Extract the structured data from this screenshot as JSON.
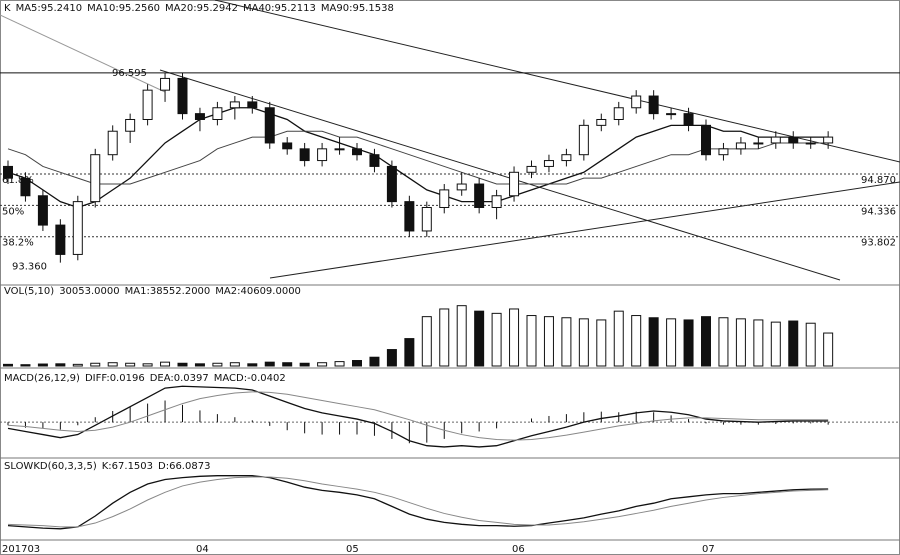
{
  "chart_data": [
    {
      "type": "candlestick",
      "headers": [
        "K",
        "MA5:95.2410",
        "MA10:95.2560",
        "MA20:95.2942",
        "MA40:95.2113",
        "MA90:95.1538"
      ],
      "ylim": [
        93.03,
        97.53
      ],
      "high_label": 96.595,
      "low_label": {
        "value": 93.36,
        "label": "93.360"
      },
      "levels": [
        {
          "pct": "61.8%",
          "price": {
            "value": 94.87,
            "label": "94.870"
          }
        },
        {
          "pct": "50%",
          "price": 94.336
        },
        {
          "pct": "38.2%",
          "price": 93.802
        }
      ],
      "candles": [
        [
          95.0,
          95.1,
          94.7,
          94.8
        ],
        [
          94.8,
          94.9,
          94.4,
          94.5
        ],
        [
          94.5,
          94.6,
          93.9,
          94.0
        ],
        [
          94.0,
          94.1,
          93.36,
          93.5
        ],
        [
          93.5,
          94.5,
          93.4,
          94.4
        ],
        [
          94.4,
          95.3,
          94.3,
          95.2
        ],
        [
          95.2,
          95.7,
          95.1,
          95.6
        ],
        [
          95.6,
          95.9,
          95.4,
          95.8
        ],
        [
          95.8,
          96.4,
          95.7,
          96.3
        ],
        [
          96.3,
          96.595,
          96.1,
          96.5
        ],
        [
          96.5,
          96.6,
          95.8,
          95.9
        ],
        [
          95.9,
          96.0,
          95.6,
          95.8
        ],
        [
          95.8,
          96.1,
          95.7,
          96.0
        ],
        [
          96.0,
          96.2,
          95.8,
          96.1
        ],
        [
          96.1,
          96.2,
          95.9,
          96.0
        ],
        [
          96.0,
          96.1,
          95.3,
          95.4
        ],
        [
          95.4,
          95.5,
          95.2,
          95.3
        ],
        [
          95.3,
          95.4,
          95.0,
          95.1
        ],
        [
          95.1,
          95.4,
          95.0,
          95.3
        ],
        [
          95.3,
          95.5,
          95.2,
          95.3
        ],
        [
          95.3,
          95.4,
          95.1,
          95.2
        ],
        [
          95.2,
          95.3,
          94.9,
          95.0
        ],
        [
          95.0,
          95.1,
          94.3,
          94.4
        ],
        [
          94.4,
          94.5,
          93.8,
          93.9
        ],
        [
          93.9,
          94.4,
          93.8,
          94.3
        ],
        [
          94.3,
          94.7,
          94.2,
          94.6
        ],
        [
          94.6,
          94.9,
          94.5,
          94.7
        ],
        [
          94.7,
          94.8,
          94.2,
          94.3
        ],
        [
          94.3,
          94.6,
          94.1,
          94.5
        ],
        [
          94.5,
          95.0,
          94.4,
          94.9
        ],
        [
          94.9,
          95.1,
          94.8,
          95.0
        ],
        [
          95.0,
          95.2,
          94.9,
          95.1
        ],
        [
          95.1,
          95.3,
          95.0,
          95.2
        ],
        [
          95.2,
          95.8,
          95.1,
          95.7
        ],
        [
          95.7,
          95.9,
          95.6,
          95.8
        ],
        [
          95.8,
          96.1,
          95.7,
          96.0
        ],
        [
          96.0,
          96.3,
          95.9,
          96.2
        ],
        [
          96.2,
          96.3,
          95.8,
          95.9
        ],
        [
          95.9,
          96.0,
          95.8,
          95.9
        ],
        [
          95.9,
          96.0,
          95.6,
          95.7
        ],
        [
          95.7,
          95.8,
          95.1,
          95.2
        ],
        [
          95.2,
          95.4,
          95.1,
          95.3
        ],
        [
          95.3,
          95.5,
          95.2,
          95.4
        ],
        [
          95.4,
          95.5,
          95.3,
          95.4
        ],
        [
          95.4,
          95.6,
          95.3,
          95.5
        ],
        [
          95.5,
          95.6,
          95.3,
          95.4
        ],
        [
          95.4,
          95.5,
          95.3,
          95.4
        ],
        [
          95.4,
          95.6,
          95.3,
          95.5
        ]
      ],
      "series": [
        {
          "color": "#111111",
          "values": [
            94.9,
            94.8,
            94.6,
            94.4,
            94.3,
            94.4,
            94.6,
            94.8,
            95.1,
            95.4,
            95.6,
            95.8,
            95.9,
            96.0,
            96.0,
            95.9,
            95.8,
            95.6,
            95.5,
            95.4,
            95.3,
            95.2,
            95.0,
            94.8,
            94.6,
            94.5,
            94.4,
            94.4,
            94.4,
            94.5,
            94.6,
            94.7,
            94.8,
            94.9,
            95.1,
            95.3,
            95.5,
            95.6,
            95.7,
            95.7,
            95.7,
            95.6,
            95.6,
            95.5,
            95.5,
            95.5,
            95.5,
            95.5
          ]
        },
        {
          "color": "#444444",
          "values": [
            95.3,
            95.2,
            95.0,
            94.9,
            94.8,
            94.7,
            94.7,
            94.7,
            94.8,
            94.9,
            95.0,
            95.1,
            95.3,
            95.4,
            95.5,
            95.5,
            95.6,
            95.6,
            95.6,
            95.5,
            95.5,
            95.4,
            95.3,
            95.2,
            95.1,
            95.0,
            94.9,
            94.8,
            94.7,
            94.7,
            94.7,
            94.7,
            94.7,
            94.8,
            94.8,
            94.9,
            95.0,
            95.1,
            95.2,
            95.2,
            95.3,
            95.3,
            95.3,
            95.3,
            95.4,
            95.4,
            95.4,
            95.4
          ]
        }
      ]
    },
    {
      "type": "volume",
      "headers": [
        "VOL(5,10)",
        "30053.0000",
        "MA1:38552.2000",
        "MA2:40609.0000"
      ],
      "ylim": [
        0,
        62000
      ],
      "values": [
        1500,
        1200,
        1800,
        2000,
        1500,
        2500,
        3000,
        2500,
        2000,
        3500,
        2500,
        2000,
        2500,
        3000,
        2000,
        3500,
        3000,
        2500,
        3000,
        4000,
        5000,
        8000,
        15000,
        25000,
        45000,
        52000,
        55000,
        50000,
        48000,
        52000,
        46000,
        45000,
        44000,
        43000,
        42000,
        50000,
        46000,
        44000,
        43000,
        42000,
        45000,
        44000,
        43000,
        42000,
        40000,
        41000,
        39000,
        30053
      ]
    },
    {
      "type": "macd",
      "headers": [
        "MACD(26,12,9)",
        "DIFF:0.0196",
        "DEA:0.0397",
        "MACD:-0.0402"
      ],
      "ylim": [
        -0.53,
        0.6
      ],
      "hist": [
        -0.05,
        -0.09,
        -0.1,
        -0.12,
        -0.05,
        0.08,
        0.18,
        0.25,
        0.3,
        0.35,
        0.28,
        0.19,
        0.13,
        0.08,
        0.03,
        -0.06,
        -0.13,
        -0.18,
        -0.2,
        -0.2,
        -0.2,
        -0.22,
        -0.27,
        -0.34,
        -0.33,
        -0.27,
        -0.18,
        -0.15,
        -0.1,
        -0.01,
        0.06,
        0.1,
        0.13,
        0.16,
        0.17,
        0.16,
        0.17,
        0.16,
        0.11,
        0.05,
        -0.02,
        -0.04,
        -0.04,
        -0.04,
        -0.03,
        -0.02,
        -0.02,
        -0.0402
      ],
      "series": [
        {
          "color": "#111111",
          "values": [
            -0.1,
            -0.15,
            -0.2,
            -0.25,
            -0.2,
            -0.05,
            0.1,
            0.25,
            0.4,
            0.55,
            0.58,
            0.57,
            0.56,
            0.55,
            0.52,
            0.42,
            0.32,
            0.22,
            0.15,
            0.1,
            0.05,
            -0.02,
            -0.15,
            -0.3,
            -0.38,
            -0.4,
            -0.38,
            -0.4,
            -0.38,
            -0.3,
            -0.22,
            -0.15,
            -0.08,
            0.0,
            0.06,
            0.1,
            0.15,
            0.18,
            0.16,
            0.12,
            0.05,
            0.02,
            0.01,
            0.0,
            0.01,
            0.02,
            0.02,
            0.0196
          ]
        },
        {
          "color": "#888888",
          "values": [
            -0.05,
            -0.07,
            -0.1,
            -0.13,
            -0.15,
            -0.13,
            -0.08,
            0.0,
            0.1,
            0.2,
            0.3,
            0.38,
            0.43,
            0.47,
            0.49,
            0.48,
            0.45,
            0.4,
            0.35,
            0.3,
            0.25,
            0.2,
            0.12,
            0.04,
            -0.05,
            -0.13,
            -0.2,
            -0.25,
            -0.28,
            -0.29,
            -0.28,
            -0.25,
            -0.21,
            -0.16,
            -0.11,
            -0.06,
            -0.02,
            0.02,
            0.05,
            0.07,
            0.07,
            0.06,
            0.05,
            0.04,
            0.04,
            0.04,
            0.04,
            0.0397
          ]
        }
      ]
    },
    {
      "type": "line",
      "headers": [
        "SLOWKD(60,3,3,5)",
        "K:67.1503",
        "D:66.0873"
      ],
      "ylim": [
        0,
        100
      ],
      "series": [
        {
          "color": "#111111",
          "values": [
            10,
            8,
            6,
            5,
            8,
            25,
            45,
            62,
            75,
            82,
            85,
            87,
            88,
            88,
            88,
            85,
            78,
            70,
            65,
            62,
            58,
            52,
            40,
            28,
            20,
            15,
            12,
            10,
            10,
            9,
            10,
            14,
            18,
            22,
            28,
            33,
            40,
            45,
            52,
            55,
            58,
            60,
            60,
            62,
            64,
            66,
            67,
            67.1503
          ]
        },
        {
          "color": "#888888",
          "values": [
            12,
            11,
            10,
            8,
            8,
            14,
            24,
            36,
            50,
            62,
            72,
            78,
            82,
            85,
            86,
            86,
            84,
            80,
            75,
            71,
            67,
            62,
            55,
            46,
            37,
            29,
            23,
            18,
            15,
            12,
            11,
            11,
            13,
            16,
            20,
            24,
            29,
            34,
            40,
            45,
            50,
            54,
            57,
            60,
            62,
            64,
            65,
            66.0873
          ]
        }
      ]
    }
  ],
  "dates": [
    "201703",
    "04",
    "05",
    "06",
    "07"
  ]
}
